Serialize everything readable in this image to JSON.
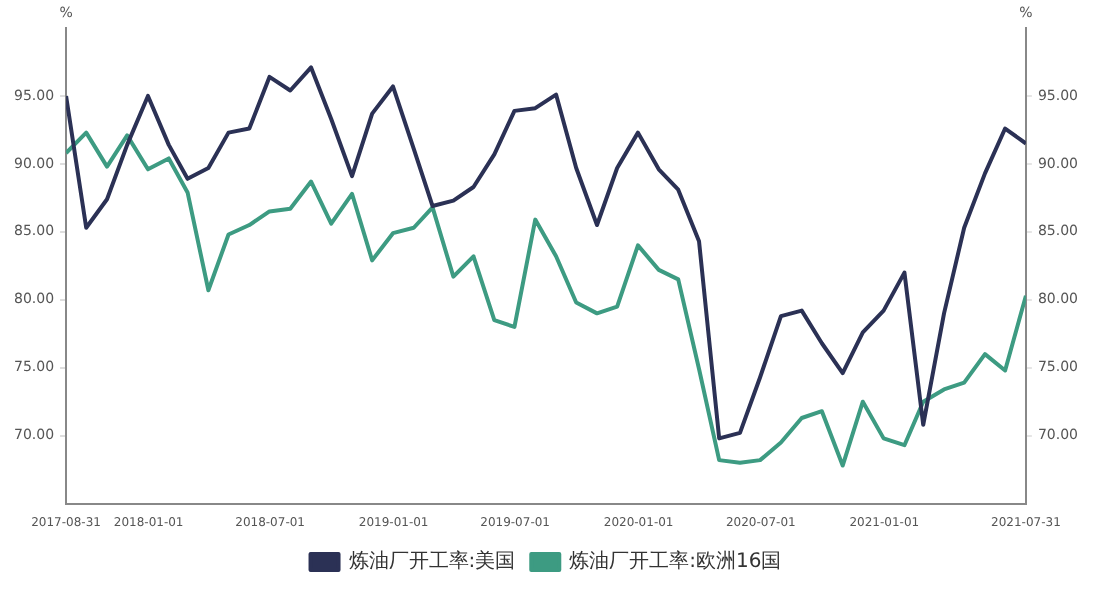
{
  "chart_data": {
    "type": "line",
    "x": [
      "2017-08-31",
      "2017-09-30",
      "2017-10-31",
      "2017-11-30",
      "2017-12-31",
      "2018-01-31",
      "2018-02-28",
      "2018-03-31",
      "2018-04-30",
      "2018-05-31",
      "2018-06-30",
      "2018-07-31",
      "2018-08-31",
      "2018-09-30",
      "2018-10-31",
      "2018-11-30",
      "2018-12-31",
      "2019-01-31",
      "2019-02-28",
      "2019-03-31",
      "2019-04-30",
      "2019-05-31",
      "2019-06-30",
      "2019-07-31",
      "2019-08-31",
      "2019-09-30",
      "2019-10-31",
      "2019-11-30",
      "2019-12-31",
      "2020-01-31",
      "2020-02-29",
      "2020-03-31",
      "2020-04-30",
      "2020-05-31",
      "2020-06-30",
      "2020-07-31",
      "2020-08-31",
      "2020-09-30",
      "2020-10-31",
      "2020-11-30",
      "2020-12-31",
      "2021-01-31",
      "2021-02-28",
      "2021-03-31",
      "2021-04-30",
      "2021-05-31",
      "2021-06-30",
      "2021-07-31"
    ],
    "series": [
      {
        "name": "炼油厂开工率:美国",
        "color": "#2b3155",
        "values": [
          95.0,
          85.3,
          87.4,
          91.4,
          95.0,
          91.4,
          88.9,
          89.7,
          92.3,
          92.6,
          96.4,
          95.4,
          97.1,
          93.3,
          89.1,
          93.7,
          95.7,
          91.1,
          86.9,
          87.3,
          88.3,
          90.7,
          93.9,
          94.1,
          95.1,
          89.7,
          85.5,
          89.7,
          92.3,
          89.6,
          88.1,
          84.3,
          69.8,
          70.2,
          74.3,
          78.8,
          79.2,
          76.8,
          74.6,
          77.6,
          79.2,
          82.0,
          70.8,
          79.0,
          85.3,
          89.3,
          92.6,
          91.5
        ]
      },
      {
        "name": "炼油厂开工率:欧洲16国",
        "color": "#3d9b82",
        "values": [
          90.8,
          92.3,
          89.8,
          92.1,
          89.6,
          90.4,
          87.9,
          80.7,
          84.8,
          85.5,
          86.5,
          86.7,
          88.7,
          85.6,
          87.8,
          82.9,
          84.9,
          85.3,
          86.8,
          81.7,
          83.2,
          78.5,
          78.0,
          85.9,
          83.2,
          79.8,
          79.0,
          79.5,
          84.0,
          82.2,
          81.5,
          74.9,
          68.2,
          68.0,
          68.2,
          69.5,
          71.3,
          71.8,
          67.8,
          72.5,
          69.8,
          69.3,
          72.5,
          73.4,
          73.9,
          76.0,
          74.8,
          80.3
        ]
      }
    ],
    "xlim": [
      "2017-08-31",
      "2021-07-31"
    ],
    "xticks": [
      "2017-08-31",
      "2018-01-01",
      "2018-07-01",
      "2019-01-01",
      "2019-07-01",
      "2020-01-01",
      "2020-07-01",
      "2021-01-01",
      "2021-07-31"
    ],
    "ylabel": "%",
    "y2label": "%",
    "ylim": [
      65,
      100
    ],
    "yticks": [
      {
        "value": 70,
        "label": "70.00"
      },
      {
        "value": 75,
        "label": "75.00"
      },
      {
        "value": 80,
        "label": "80.00"
      },
      {
        "value": 85,
        "label": "85.00"
      },
      {
        "value": 90,
        "label": "90.00"
      },
      {
        "value": 95,
        "label": "95.00"
      }
    ],
    "y2lim": [
      65,
      100
    ],
    "y2ticks": [
      {
        "value": 70,
        "label": "70.00"
      },
      {
        "value": 75,
        "label": "75.00"
      },
      {
        "value": 80,
        "label": "80.00"
      },
      {
        "value": 85,
        "label": "85.00"
      },
      {
        "value": 90,
        "label": "90.00"
      },
      {
        "value": 95,
        "label": "95.00"
      }
    ],
    "grid": false,
    "legend": "bottom",
    "marker": "none",
    "line_style": "solid"
  }
}
